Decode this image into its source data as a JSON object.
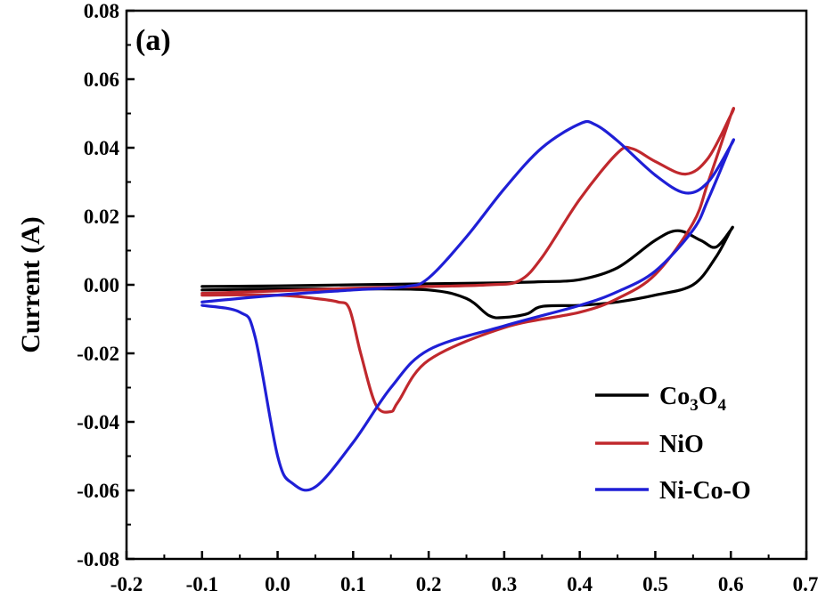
{
  "chart_data": {
    "type": "line",
    "panel_label": "(a)",
    "title": "",
    "xlabel": "",
    "ylabel": "Current (A)",
    "xlim": [
      -0.2,
      0.7
    ],
    "ylim": [
      -0.08,
      0.08
    ],
    "x_ticks": [
      "-0.2",
      "-0.1",
      "0.0",
      "0.1",
      "0.2",
      "0.3",
      "0.4",
      "0.5",
      "0.6",
      "0.7"
    ],
    "y_ticks": [
      "0.08",
      "0.06",
      "0.04",
      "0.02",
      "0.00",
      "-0.02",
      "-0.04",
      "-0.06",
      "-0.08"
    ],
    "legend_position": "bottom-right",
    "series": [
      {
        "name": "Co3O4",
        "legend_main": "Co",
        "legend_sub1": "3",
        "legend_mid": "O",
        "legend_sub2": "4",
        "color": "#000000",
        "x": [
          -0.1,
          0.0,
          0.1,
          0.2,
          0.3,
          0.35,
          0.4,
          0.45,
          0.5,
          0.53,
          0.56,
          0.58,
          0.6,
          0.6,
          0.58,
          0.55,
          0.5,
          0.45,
          0.4,
          0.35,
          0.33,
          0.3,
          0.28,
          0.25,
          0.2,
          0.1,
          0.0,
          -0.1
        ],
        "y": [
          -0.0005,
          -0.0003,
          0.0,
          0.0003,
          0.0006,
          0.0009,
          0.0015,
          0.005,
          0.013,
          0.0158,
          0.013,
          0.011,
          0.016,
          0.016,
          0.008,
          0.0,
          -0.003,
          -0.005,
          -0.006,
          -0.0063,
          -0.0085,
          -0.0095,
          -0.009,
          -0.004,
          -0.0015,
          -0.0012,
          -0.0012,
          -0.0015
        ]
      },
      {
        "name": "NiO",
        "color": "#c0282d",
        "x": [
          -0.1,
          0.0,
          0.1,
          0.2,
          0.28,
          0.32,
          0.35,
          0.4,
          0.45,
          0.47,
          0.5,
          0.54,
          0.57,
          0.6,
          0.6,
          0.57,
          0.55,
          0.5,
          0.45,
          0.4,
          0.3,
          0.2,
          0.16,
          0.15,
          0.13,
          0.11,
          0.095,
          0.08,
          0.05,
          0.0,
          -0.1
        ],
        "y": [
          -0.0025,
          -0.0018,
          -0.001,
          -0.0005,
          0.0,
          0.0012,
          0.008,
          0.025,
          0.0385,
          0.0397,
          0.036,
          0.0323,
          0.037,
          0.0495,
          0.0495,
          0.03,
          0.018,
          0.003,
          -0.004,
          -0.008,
          -0.0125,
          -0.022,
          -0.034,
          -0.037,
          -0.035,
          -0.02,
          -0.007,
          -0.005,
          -0.004,
          -0.003,
          -0.003
        ]
      },
      {
        "name": "Ni-Co-O",
        "color": "#1f1fd6",
        "x": [
          -0.1,
          0.0,
          0.1,
          0.17,
          0.2,
          0.25,
          0.3,
          0.35,
          0.4,
          0.42,
          0.45,
          0.5,
          0.54,
          0.57,
          0.6,
          0.6,
          0.57,
          0.55,
          0.5,
          0.45,
          0.4,
          0.3,
          0.2,
          0.15,
          0.1,
          0.05,
          0.02,
          0.0,
          -0.03,
          -0.05,
          -0.1
        ],
        "y": [
          -0.005,
          -0.003,
          -0.0015,
          -0.0005,
          0.002,
          0.014,
          0.028,
          0.04,
          0.047,
          0.0468,
          0.042,
          0.032,
          0.0268,
          0.03,
          0.0407,
          0.0407,
          0.025,
          0.016,
          0.004,
          -0.002,
          -0.006,
          -0.012,
          -0.019,
          -0.03,
          -0.046,
          -0.059,
          -0.058,
          -0.05,
          -0.015,
          -0.008,
          -0.006
        ]
      }
    ]
  }
}
